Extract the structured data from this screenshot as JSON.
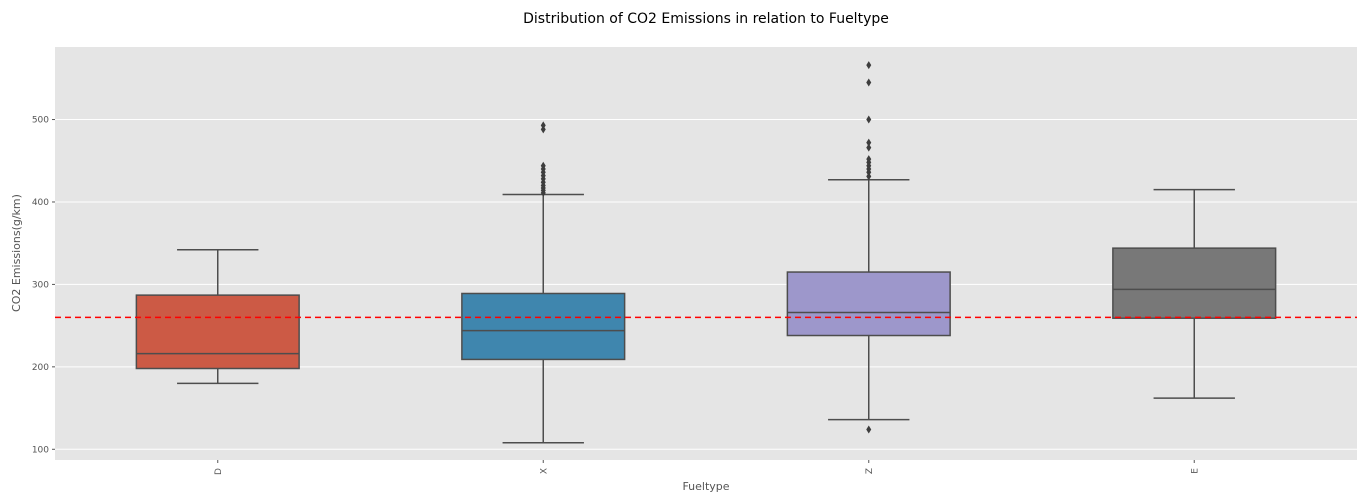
{
  "chart_data": {
    "type": "box",
    "title": "Distribution of CO2 Emissions in relation to Fueltype",
    "xlabel": "Fueltype",
    "ylabel": "CO2 Emissions(g/km)",
    "ylim": [
      87,
      588
    ],
    "yticks": [
      100,
      200,
      300,
      400,
      500
    ],
    "grid": true,
    "reference_line": {
      "value": 260,
      "color": "#ff0000",
      "style": "dashed"
    },
    "categories": [
      "D",
      "X",
      "Z",
      "E"
    ],
    "boxes": [
      {
        "category": "D",
        "color": "#cc5a45",
        "whisker_low": 180,
        "q1": 198,
        "median": 216,
        "q3": 287,
        "whisker_high": 342,
        "outliers": []
      },
      {
        "category": "X",
        "color": "#3f86ae",
        "whisker_low": 108,
        "q1": 209,
        "median": 244,
        "q3": 289,
        "whisker_high": 409,
        "outliers": [
          411,
          414,
          417,
          420,
          424,
          428,
          432,
          436,
          440,
          444,
          488,
          493
        ]
      },
      {
        "category": "Z",
        "color": "#9d97cb",
        "whisker_low": 136,
        "q1": 238,
        "median": 266,
        "q3": 315,
        "whisker_high": 427,
        "outliers": [
          124,
          431,
          436,
          440,
          444,
          448,
          452,
          466,
          472,
          500,
          545,
          566
        ]
      },
      {
        "category": "E",
        "color": "#787878",
        "whisker_low": 162,
        "q1": 259,
        "median": 294,
        "q3": 344,
        "whisker_high": 415,
        "outliers": []
      }
    ]
  }
}
